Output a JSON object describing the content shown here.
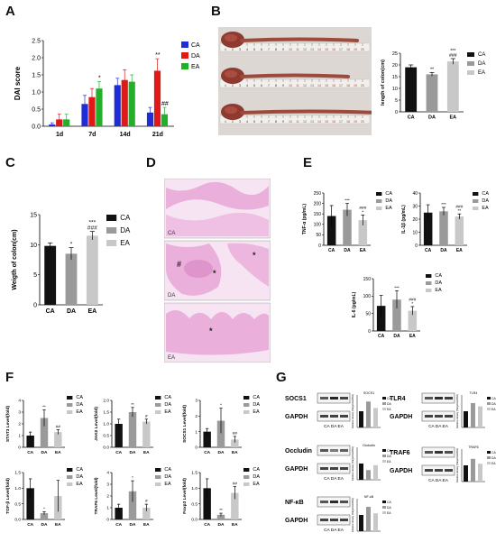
{
  "panels": {
    "A": "A",
    "B": "B",
    "C": "C",
    "D": "D",
    "E": "E",
    "F": "F",
    "G": "G"
  },
  "colors": {
    "CA_color": "#1f2dd6",
    "DA_color": "#e01818",
    "EA_color": "#22b02a",
    "black": "#111111",
    "dark_gray": "#9a9a9a",
    "light_gray": "#c8c8c8",
    "he_stain": "#e8a9d6",
    "he_bg": "#f6e4f2"
  },
  "chart_data": [
    {
      "id": "A",
      "type": "bar",
      "title": "",
      "ylabel": "DAI score",
      "xlabel": "",
      "categories": [
        "1d",
        "7d",
        "14d",
        "21d"
      ],
      "ylim": [
        0,
        2.5
      ],
      "yticks": [
        "0.0",
        "0.5",
        "1.0",
        "1.5",
        "2.0",
        "2.5"
      ],
      "legend": [
        "CA",
        "DA",
        "EA"
      ],
      "series": [
        {
          "name": "CA",
          "values": [
            0.05,
            0.65,
            1.2,
            0.4
          ],
          "err": [
            0.05,
            0.25,
            0.2,
            0.15
          ]
        },
        {
          "name": "DA",
          "values": [
            0.2,
            0.85,
            1.35,
            1.62
          ],
          "err": [
            0.15,
            0.25,
            0.3,
            0.35
          ]
        },
        {
          "name": "EA",
          "values": [
            0.2,
            1.1,
            1.3,
            0.35
          ],
          "err": [
            0.15,
            0.2,
            0.2,
            0.2
          ]
        }
      ],
      "annotations": [
        {
          "cat": 1,
          "series": 2,
          "text": "*"
        },
        {
          "cat": 3,
          "series": 1,
          "text": "**"
        },
        {
          "cat": 3,
          "series": 2,
          "text": "##"
        }
      ]
    },
    {
      "id": "B",
      "type": "bar",
      "ylabel": "length of colon(cm)",
      "categories": [
        "CA",
        "DA",
        "EA"
      ],
      "ylim": [
        0,
        25
      ],
      "yticks": [
        "0",
        "5",
        "10",
        "15",
        "20",
        "25"
      ],
      "legend": [
        "CA",
        "DA",
        "EA"
      ],
      "values": [
        19,
        16,
        21.5
      ],
      "err": [
        1,
        0.8,
        1.2
      ],
      "annotations": [
        {
          "cat": 1,
          "text": "**"
        },
        {
          "cat": 2,
          "text": "###"
        },
        {
          "cat": 2,
          "text": "***"
        }
      ]
    },
    {
      "id": "C",
      "type": "bar",
      "ylabel": "Weigth of colon(cm)",
      "categories": [
        "CA",
        "DA",
        "EA"
      ],
      "ylim": [
        0,
        15
      ],
      "yticks": [
        "0",
        "5",
        "10",
        "15"
      ],
      "legend": [
        "CA",
        "DA",
        "EA"
      ],
      "values": [
        9.8,
        8.5,
        11.5
      ],
      "err": [
        0.5,
        1.0,
        0.7
      ],
      "annotations": [
        {
          "cat": 1,
          "text": "*"
        },
        {
          "cat": 2,
          "text": "###"
        },
        {
          "cat": 2,
          "text": "***"
        }
      ]
    },
    {
      "id": "E1",
      "type": "bar",
      "ylabel": "TNF-α (pg/mL)",
      "categories": [
        "CA",
        "DA",
        "EA"
      ],
      "ylim": [
        0,
        250
      ],
      "yticks": [
        "0",
        "50",
        "100",
        "150",
        "200",
        "250"
      ],
      "legend": [
        "CA",
        "DA",
        "EA"
      ],
      "values": [
        140,
        170,
        120
      ],
      "err": [
        50,
        30,
        25
      ],
      "annotations": [
        {
          "cat": 1,
          "text": "***"
        },
        {
          "cat": 2,
          "text": "*"
        },
        {
          "cat": 2,
          "text": "###"
        }
      ]
    },
    {
      "id": "E2",
      "type": "bar",
      "ylabel": "IL-1β (pg/mL)",
      "categories": [
        "CA",
        "DA",
        "EA"
      ],
      "ylim": [
        0,
        40
      ],
      "yticks": [
        "0",
        "10",
        "20",
        "30",
        "40"
      ],
      "legend": [
        "CA",
        "DA",
        "EA"
      ],
      "values": [
        25,
        26,
        22
      ],
      "err": [
        6,
        3,
        2
      ],
      "annotations": [
        {
          "cat": 1,
          "text": "***"
        },
        {
          "cat": 2,
          "text": "**"
        },
        {
          "cat": 2,
          "text": "###"
        }
      ]
    },
    {
      "id": "E3",
      "type": "bar",
      "ylabel": "IL-6 (pg/mL)",
      "categories": [
        "CA",
        "DA",
        "EA"
      ],
      "ylim": [
        0,
        150
      ],
      "yticks": [
        "0",
        "50",
        "100",
        "150"
      ],
      "legend": [
        "CA",
        "DA",
        "EA"
      ],
      "values": [
        72,
        90,
        58
      ],
      "err": [
        30,
        25,
        12
      ],
      "annotations": [
        {
          "cat": 1,
          "text": "***"
        },
        {
          "cat": 2,
          "text": "*"
        },
        {
          "cat": 2,
          "text": "###"
        }
      ]
    },
    {
      "id": "F1",
      "type": "bar",
      "ylabel": "STAT3 Level(fold)",
      "categories": [
        "CA",
        "DA",
        "EA"
      ],
      "ylim": [
        0,
        4
      ],
      "yticks": [
        "0",
        "1",
        "2",
        "3",
        "4"
      ],
      "legend": [
        "CA",
        "DA",
        "EA"
      ],
      "values": [
        1.0,
        2.5,
        1.3
      ],
      "err": [
        0.3,
        0.7,
        0.2
      ],
      "annotations": [
        {
          "cat": 1,
          "text": "**"
        },
        {
          "cat": 2,
          "text": "##"
        }
      ]
    },
    {
      "id": "F2",
      "type": "bar",
      "ylabel": "JAK2 Level(fold)",
      "categories": [
        "CA",
        "DA",
        "EA"
      ],
      "ylim": [
        0,
        2.0
      ],
      "yticks": [
        "0.0",
        "0.5",
        "1.0",
        "1.5",
        "2.0"
      ],
      "legend": [
        "CA",
        "DA",
        "EA"
      ],
      "values": [
        1.0,
        1.5,
        1.1
      ],
      "err": [
        0.2,
        0.2,
        0.1
      ],
      "annotations": [
        {
          "cat": 1,
          "text": "**"
        },
        {
          "cat": 2,
          "text": "#"
        }
      ]
    },
    {
      "id": "F3",
      "type": "bar",
      "ylabel": "SOCS1 Level(fold)",
      "categories": [
        "CA",
        "DA",
        "EA"
      ],
      "ylim": [
        0,
        3
      ],
      "yticks": [
        "0",
        "1",
        "2",
        "3"
      ],
      "legend": [
        "CA",
        "DA",
        "EA"
      ],
      "values": [
        1.0,
        1.7,
        0.5
      ],
      "err": [
        0.2,
        0.8,
        0.2
      ],
      "annotations": [
        {
          "cat": 1,
          "text": "*"
        },
        {
          "cat": 2,
          "text": "##"
        }
      ]
    },
    {
      "id": "F4",
      "type": "bar",
      "ylabel": "TGF-β Level(fold)",
      "categories": [
        "CA",
        "DA",
        "EA"
      ],
      "ylim": [
        0,
        1.5
      ],
      "yticks": [
        "0.0",
        "0.5",
        "1.0",
        "1.5"
      ],
      "legend": [
        "CA",
        "DA",
        "EA"
      ],
      "values": [
        1.0,
        0.2,
        0.75
      ],
      "err": [
        0.3,
        0.05,
        0.5
      ],
      "annotations": [
        {
          "cat": 1,
          "text": "*"
        }
      ]
    },
    {
      "id": "F5",
      "type": "bar",
      "ylabel": "TRAF6 Level(fold)",
      "categories": [
        "CA",
        "DA",
        "EA"
      ],
      "ylim": [
        0,
        4
      ],
      "yticks": [
        "0",
        "1",
        "2",
        "3",
        "4"
      ],
      "legend": [
        "CA",
        "DA",
        "EA"
      ],
      "values": [
        1.0,
        2.4,
        1.0
      ],
      "err": [
        0.3,
        0.9,
        0.3
      ],
      "annotations": [
        {
          "cat": 1,
          "text": "*"
        },
        {
          "cat": 2,
          "text": "#"
        }
      ]
    },
    {
      "id": "F6",
      "type": "bar",
      "ylabel": "Foxp3 Level(fold)",
      "categories": [
        "CA",
        "DA",
        "EA"
      ],
      "ylim": [
        0,
        1.5
      ],
      "yticks": [
        "0.0",
        "0.5",
        "1.0",
        "1.5"
      ],
      "legend": [
        "CA",
        "DA",
        "EA"
      ],
      "values": [
        1.0,
        0.15,
        0.85
      ],
      "err": [
        0.3,
        0.05,
        0.2
      ],
      "annotations": [
        {
          "cat": 1,
          "text": "**"
        },
        {
          "cat": 2,
          "text": "##"
        }
      ]
    }
  ],
  "photo_B": {
    "ruler_numbers": [
      "1",
      "2",
      "3",
      "4",
      "5",
      "6",
      "7",
      "8",
      "9",
      "10",
      "11",
      "12",
      "13",
      "14",
      "15",
      "16",
      "17",
      "18",
      "19",
      "20"
    ]
  },
  "histology_D": {
    "labels": [
      "CA",
      "DA",
      "EA"
    ],
    "markers": [
      "#",
      "*",
      "*",
      "*"
    ]
  },
  "blots_G": {
    "blocks": [
      {
        "protein": "SOCS1",
        "loading": "GAPDH",
        "bar_title": "SOCS1"
      },
      {
        "protein": "TLR4",
        "loading": "GAPDH",
        "bar_title": "TLR4"
      },
      {
        "protein": "Occludin",
        "loading": "GAPDH",
        "bar_title": "Occludin"
      },
      {
        "protein": "TRAF6",
        "loading": "GAPDH",
        "bar_title": "TRAF6"
      },
      {
        "protein": "NF-κB",
        "loading": "GAPDH",
        "bar_title": "NF-κB"
      }
    ],
    "lanes": "CA DA EA",
    "mini_values": [
      [
        1.0,
        1.6,
        1.2
      ],
      [
        1.0,
        1.5,
        1.3
      ],
      [
        1.0,
        0.6,
        0.9
      ],
      [
        1.0,
        1.4,
        1.1
      ],
      [
        1.0,
        1.5,
        1.1
      ]
    ],
    "mini_legend": [
      "CA",
      "DA",
      "EA"
    ],
    "mini_ylabel": "Relative density (Target/GAPDH)"
  }
}
